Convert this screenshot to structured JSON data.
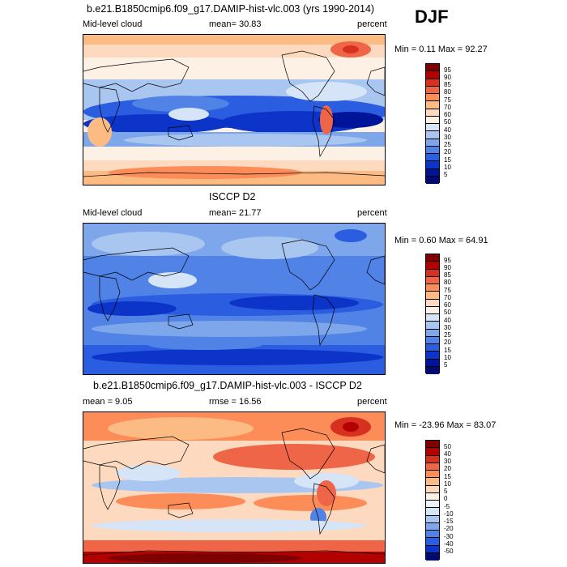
{
  "season": "DJF",
  "panels": [
    {
      "title": "b.e21.B1850cmip6.f09_g17.DAMIP-hist-vlc.003 (yrs 1990-2014)",
      "left_label": "Mid-level cloud",
      "stat_text": "mean=  30.83",
      "right_label": "percent",
      "minmax_text": "Min =   0.11 Max =  92.27",
      "levels": [
        "95",
        "90",
        "85",
        "80",
        "75",
        "70",
        "60",
        "50",
        "40",
        "30",
        "25",
        "20",
        "15",
        "10",
        "5"
      ],
      "palette": "abs"
    },
    {
      "title": "ISCCP D2",
      "left_label": "Mid-level cloud",
      "stat_text": "mean=  21.77",
      "right_label": "percent",
      "minmax_text": "Min =   0.60 Max =  64.91",
      "levels": [
        "95",
        "90",
        "85",
        "80",
        "75",
        "70",
        "60",
        "50",
        "40",
        "30",
        "25",
        "20",
        "15",
        "10",
        "5"
      ],
      "palette": "abs"
    },
    {
      "title": "b.e21.B1850cmip6.f09_g17.DAMIP-hist-vlc.003 - ISCCP D2",
      "left_label": "mean =   9.05",
      "stat_text": "rmse =  16.56",
      "right_label": "percent",
      "minmax_text": "Min = -23.96 Max =  83.07",
      "levels": [
        "50",
        "40",
        "30",
        "20",
        "15",
        "10",
        "5",
        "0",
        "-5",
        "-10",
        "-15",
        "-20",
        "-30",
        "-40",
        "-50"
      ],
      "palette": "diff"
    }
  ],
  "colors": {
    "abs": [
      "#7f0000",
      "#b30000",
      "#d7301f",
      "#ef6548",
      "#fc8d59",
      "#fdbb84",
      "#fdd9c0",
      "#fdf1e6",
      "#d6e4f7",
      "#a9c6f0",
      "#7ea6ea",
      "#5182e6",
      "#2b5de0",
      "#0d34c8",
      "#00149a",
      "#000a70"
    ],
    "diff": [
      "#7f0000",
      "#b30000",
      "#d7301f",
      "#ef6548",
      "#fc8d59",
      "#fdbb84",
      "#fdd9c0",
      "#fdf1e6",
      "#eef3fb",
      "#d6e4f7",
      "#a9c6f0",
      "#7ea6ea",
      "#5182e6",
      "#2b5de0",
      "#0d34c8",
      "#000a70"
    ]
  },
  "chart_data": [
    {
      "type": "heatmap",
      "title": "b.e21.B1850cmip6.f09_g17.DAMIP-hist-vlc.003 (yrs 1990-2014)",
      "variable": "Mid-level cloud",
      "units": "percent",
      "mean": 30.83,
      "min": 0.11,
      "max": 92.27,
      "contour_levels": [
        5,
        10,
        15,
        20,
        25,
        30,
        40,
        50,
        60,
        70,
        75,
        80,
        85,
        90,
        95
      ]
    },
    {
      "type": "heatmap",
      "title": "ISCCP D2",
      "variable": "Mid-level cloud",
      "units": "percent",
      "mean": 21.77,
      "min": 0.6,
      "max": 64.91,
      "contour_levels": [
        5,
        10,
        15,
        20,
        25,
        30,
        40,
        50,
        60,
        70,
        75,
        80,
        85,
        90,
        95
      ]
    },
    {
      "type": "heatmap",
      "title": "b.e21.B1850cmip6.f09_g17.DAMIP-hist-vlc.003 - ISCCP D2",
      "units": "percent",
      "mean": 9.05,
      "rmse": 16.56,
      "min": -23.96,
      "max": 83.07,
      "contour_levels": [
        -50,
        -40,
        -30,
        -20,
        -15,
        -10,
        -5,
        0,
        5,
        10,
        15,
        20,
        30,
        40,
        50
      ]
    }
  ]
}
